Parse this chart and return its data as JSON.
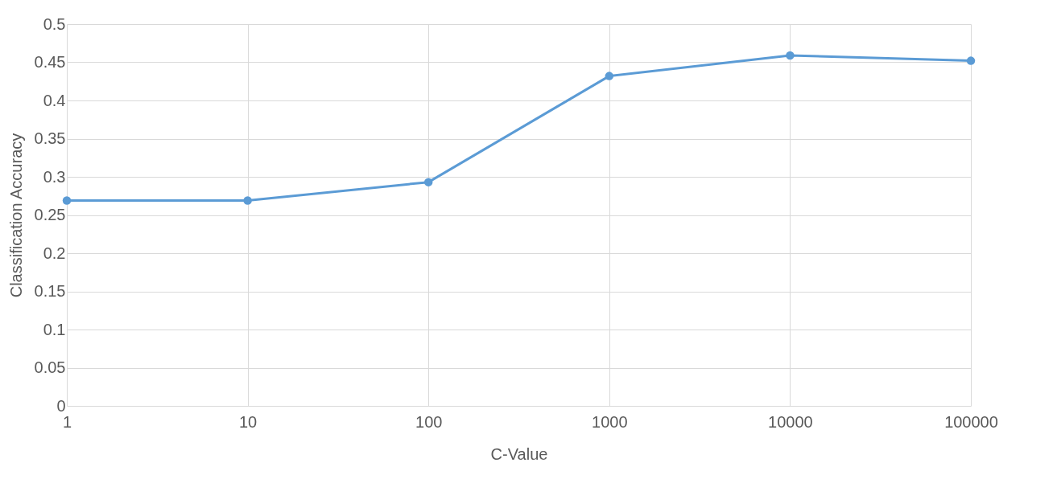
{
  "chart_data": {
    "type": "line",
    "xlabel": "C-Value",
    "ylabel": "Classification Accuracy",
    "x": [
      1,
      10,
      100,
      1000,
      10000,
      100000
    ],
    "series": [
      {
        "color": "#5b9bd5",
        "values": [
          0.269,
          0.269,
          0.293,
          0.432,
          0.459,
          0.452
        ]
      }
    ],
    "log": "x",
    "xlim": [
      1,
      100000
    ],
    "xticks": [
      1,
      10,
      100,
      1000,
      10000,
      100000
    ],
    "ylim": [
      0,
      0.5
    ],
    "yticks": [
      0,
      0.05,
      0.1,
      0.15,
      0.2,
      0.25,
      0.3,
      0.35,
      0.4,
      0.45,
      0.5
    ],
    "grid": true,
    "marker": "circle",
    "line_style": "solid"
  }
}
